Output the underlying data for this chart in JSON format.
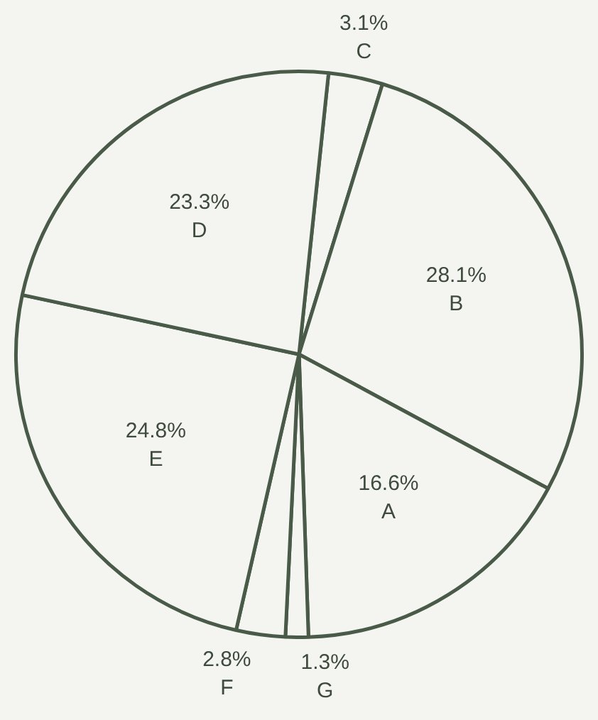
{
  "chart_data": {
    "type": "pie",
    "categories": [
      "C",
      "B",
      "A",
      "G",
      "F",
      "E",
      "D"
    ],
    "values": [
      3.1,
      28.1,
      16.6,
      1.3,
      2.8,
      24.8,
      23.3
    ],
    "colors": [
      "#f4f5f1",
      "#f4f5f1",
      "#f4f5f1",
      "#f4f5f1",
      "#f4f5f1",
      "#f4f5f1",
      "#f4f5f1"
    ],
    "value_labels": [
      "3.1%",
      "28.1%",
      "16.6%",
      "1.3%",
      "2.8%",
      "24.8%",
      "23.3%"
    ],
    "legend": false
  }
}
